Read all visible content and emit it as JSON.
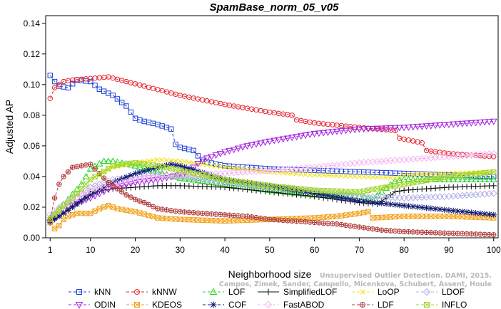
{
  "chart_data": {
    "type": "line",
    "title": "SpamBase_norm_05_v05",
    "xlabel": "Neighborhood size",
    "ylabel": "Adjusted AP",
    "xlim": [
      0,
      101
    ],
    "ylim": [
      0,
      0.145
    ],
    "xticks": [
      1,
      10,
      20,
      30,
      40,
      50,
      60,
      70,
      80,
      90,
      100
    ],
    "yticks": [
      "0.00",
      "0.02",
      "0.04",
      "0.06",
      "0.08",
      "0.10",
      "0.12",
      "0.14"
    ],
    "grid": false,
    "legend_position": "bottom",
    "credit_lines": [
      "Unsupervised Outlier Detection. DAMI, 2015.",
      "Campos, Zimek, Sander, Campello, Micenkova, Schubert, Assent, Houle"
    ],
    "series": [
      {
        "name": "kNN",
        "color": "#1c3fd6",
        "marker": "square",
        "dash": "4,3",
        "x": [
          1,
          2,
          3,
          5,
          7,
          10,
          12,
          15,
          18,
          20,
          22,
          25,
          28,
          29,
          30,
          33,
          35,
          40,
          50,
          60,
          70,
          80,
          90,
          100
        ],
        "y": [
          0.106,
          0.102,
          0.099,
          0.098,
          0.103,
          0.102,
          0.097,
          0.093,
          0.086,
          0.078,
          0.076,
          0.074,
          0.071,
          0.061,
          0.059,
          0.057,
          0.05,
          0.047,
          0.045,
          0.044,
          0.043,
          0.042,
          0.041,
          0.04
        ]
      },
      {
        "name": "kNNW",
        "color": "#e8222c",
        "marker": "circle",
        "dash": "4,3",
        "x": [
          1,
          2,
          4,
          6,
          10,
          14,
          18,
          22,
          30,
          40,
          50,
          55,
          56,
          60,
          70,
          78,
          79,
          84,
          85,
          90,
          100
        ],
        "y": [
          0.091,
          0.098,
          0.102,
          0.103,
          0.104,
          0.105,
          0.102,
          0.099,
          0.093,
          0.087,
          0.082,
          0.08,
          0.077,
          0.075,
          0.072,
          0.07,
          0.065,
          0.062,
          0.057,
          0.055,
          0.053
        ]
      },
      {
        "name": "LOF",
        "color": "#22d622",
        "marker": "triangle",
        "dash": "4,3",
        "x": [
          1,
          3,
          5,
          8,
          10,
          13,
          15,
          20,
          25,
          30,
          40,
          50,
          60,
          70,
          73,
          75,
          78,
          80,
          90,
          100
        ],
        "y": [
          0.013,
          0.019,
          0.025,
          0.035,
          0.045,
          0.05,
          0.05,
          0.047,
          0.043,
          0.039,
          0.035,
          0.031,
          0.028,
          0.027,
          0.025,
          0.03,
          0.037,
          0.038,
          0.038,
          0.038
        ]
      },
      {
        "name": "SimplifiedLOF",
        "color": "#111111",
        "marker": "plus",
        "dash": "",
        "x": [
          1,
          3,
          5,
          8,
          10,
          15,
          20,
          25,
          30,
          40,
          50,
          60,
          70,
          74,
          75,
          77,
          78,
          80,
          90,
          100
        ],
        "y": [
          0.01,
          0.014,
          0.018,
          0.025,
          0.03,
          0.032,
          0.033,
          0.034,
          0.034,
          0.033,
          0.03,
          0.027,
          0.023,
          0.022,
          0.024,
          0.028,
          0.03,
          0.031,
          0.033,
          0.034
        ]
      },
      {
        "name": "LoOP",
        "color": "#f2e21a",
        "marker": "x",
        "dash": "4,3",
        "x": [
          1,
          3,
          5,
          8,
          10,
          15,
          20,
          25,
          30,
          40,
          50,
          60,
          70,
          78,
          80,
          90,
          100
        ],
        "y": [
          0.012,
          0.017,
          0.023,
          0.032,
          0.038,
          0.046,
          0.049,
          0.051,
          0.05,
          0.046,
          0.043,
          0.041,
          0.04,
          0.039,
          0.041,
          0.042,
          0.043
        ]
      },
      {
        "name": "LDOF",
        "color": "#b0b0e8",
        "marker": "diamond",
        "dash": "4,3",
        "x": [
          1,
          3,
          5,
          8,
          10,
          15,
          20,
          25,
          30,
          40,
          50,
          60,
          70,
          80,
          90,
          100
        ],
        "y": [
          0.012,
          0.016,
          0.021,
          0.029,
          0.033,
          0.038,
          0.04,
          0.041,
          0.04,
          0.036,
          0.033,
          0.03,
          0.027,
          0.026,
          0.027,
          0.029
        ]
      },
      {
        "name": "ODIN",
        "color": "#a321e0",
        "marker": "invtriangle",
        "dash": "4,3",
        "x": [
          1,
          5,
          10,
          15,
          20,
          25,
          30,
          33,
          35,
          40,
          45,
          50,
          60,
          70,
          80,
          90,
          100
        ],
        "y": [
          0.01,
          0.02,
          0.026,
          0.033,
          0.036,
          0.038,
          0.041,
          0.046,
          0.051,
          0.056,
          0.06,
          0.063,
          0.068,
          0.071,
          0.072,
          0.074,
          0.076
        ]
      },
      {
        "name": "KDEOS",
        "color": "#f2a21a",
        "marker": "boxx",
        "dash": "4,3",
        "x": [
          1,
          2,
          3,
          4,
          5,
          7,
          10,
          12,
          14,
          16,
          20,
          25,
          30,
          40,
          50,
          60,
          65,
          70,
          72,
          73,
          80,
          90,
          100
        ],
        "y": [
          0.01,
          0.006,
          0.008,
          0.012,
          0.014,
          0.016,
          0.016,
          0.019,
          0.021,
          0.019,
          0.017,
          0.013,
          0.012,
          0.011,
          0.012,
          0.013,
          0.014,
          0.016,
          0.017,
          0.013,
          0.014,
          0.014,
          0.013
        ]
      },
      {
        "name": "COF",
        "color": "#0c1670",
        "marker": "star",
        "dash": "4,3",
        "x": [
          1,
          3,
          5,
          8,
          10,
          15,
          20,
          25,
          28,
          30,
          40,
          50,
          60,
          70,
          80,
          90,
          100
        ],
        "y": [
          0.011,
          0.014,
          0.018,
          0.024,
          0.028,
          0.036,
          0.042,
          0.046,
          0.048,
          0.047,
          0.038,
          0.034,
          0.029,
          0.024,
          0.021,
          0.018,
          0.015
        ]
      },
      {
        "name": "FastABOD",
        "color": "#f5b6f0",
        "marker": "diamond",
        "dash": "4,3",
        "x": [
          1,
          3,
          5,
          8,
          10,
          15,
          20,
          25,
          30,
          40,
          50,
          60,
          70,
          80,
          90,
          100
        ],
        "y": [
          0.015,
          0.02,
          0.024,
          0.028,
          0.031,
          0.035,
          0.038,
          0.04,
          0.041,
          0.042,
          0.044,
          0.046,
          0.049,
          0.051,
          0.053,
          0.055
        ]
      },
      {
        "name": "LDF",
        "color": "#b03a3a",
        "marker": "circleplus",
        "dash": "4,3",
        "x": [
          1,
          2,
          3,
          4,
          5,
          6,
          8,
          10,
          12,
          14,
          16,
          18,
          20,
          22,
          25,
          30,
          35,
          40,
          45,
          50,
          55,
          60,
          65,
          70,
          75,
          80,
          90,
          100
        ],
        "y": [
          0.012,
          0.026,
          0.035,
          0.04,
          0.043,
          0.046,
          0.047,
          0.048,
          0.042,
          0.036,
          0.032,
          0.028,
          0.025,
          0.023,
          0.019,
          0.017,
          0.016,
          0.015,
          0.014,
          0.012,
          0.011,
          0.01,
          0.009,
          0.007,
          0.005,
          0.004,
          0.003,
          0.002
        ]
      },
      {
        "name": "INFLO",
        "color": "#a0d62a",
        "marker": "boxx",
        "dash": "4,3",
        "x": [
          1,
          3,
          5,
          8,
          10,
          15,
          20,
          25,
          30,
          40,
          50,
          60,
          70,
          80,
          90,
          100
        ],
        "y": [
          0.012,
          0.018,
          0.023,
          0.032,
          0.038,
          0.047,
          0.049,
          0.047,
          0.044,
          0.038,
          0.034,
          0.031,
          0.03,
          0.035,
          0.04,
          0.043
        ]
      }
    ]
  }
}
